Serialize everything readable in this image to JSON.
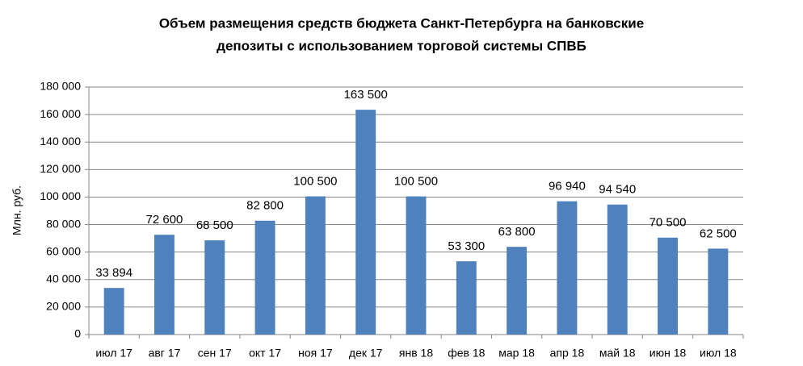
{
  "chart_data": {
    "type": "bar",
    "title": [
      "Объем размещения средств бюджета Санкт-Петербурга на банковские",
      "депозиты с использованием торговой системы СПВБ"
    ],
    "y_label": "Млн. руб.",
    "categories": [
      "июл 17",
      "авг 17",
      "сен 17",
      "окт 17",
      "ноя 17",
      "дек 17",
      "янв 18",
      "фев 18",
      "мар 18",
      "апр 18",
      "май 18",
      "июн 18",
      "июл 18"
    ],
    "values": [
      33894,
      72600,
      68500,
      82800,
      100500,
      163500,
      100500,
      53300,
      63800,
      96940,
      94540,
      70500,
      62500
    ],
    "value_labels": [
      "33 894",
      "72 600",
      "68 500",
      "82 800",
      "100 500",
      "163 500",
      "100 500",
      "53 300",
      "63 800",
      "96 940",
      "94 540",
      "70 500",
      "62 500"
    ],
    "color": "#4f81bd",
    "ylim": [
      0,
      180000
    ],
    "yticks": [
      0,
      {
        "value": 20000,
        "label": "20 000"
      },
      {
        "value": 40000,
        "label": "40 000"
      },
      {
        "value": 60000,
        "label": "60 000"
      },
      {
        "value": 80000,
        "label": "80 000"
      },
      {
        "value": 100000,
        "label": "100 000"
      },
      {
        "value": 120000,
        "label": "120 000"
      },
      {
        "value": 140000,
        "label": "140 000"
      },
      {
        "value": 160000,
        "label": "160 000"
      },
      {
        "value": 180000,
        "label": "180 000"
      }
    ],
    "grid": true
  }
}
